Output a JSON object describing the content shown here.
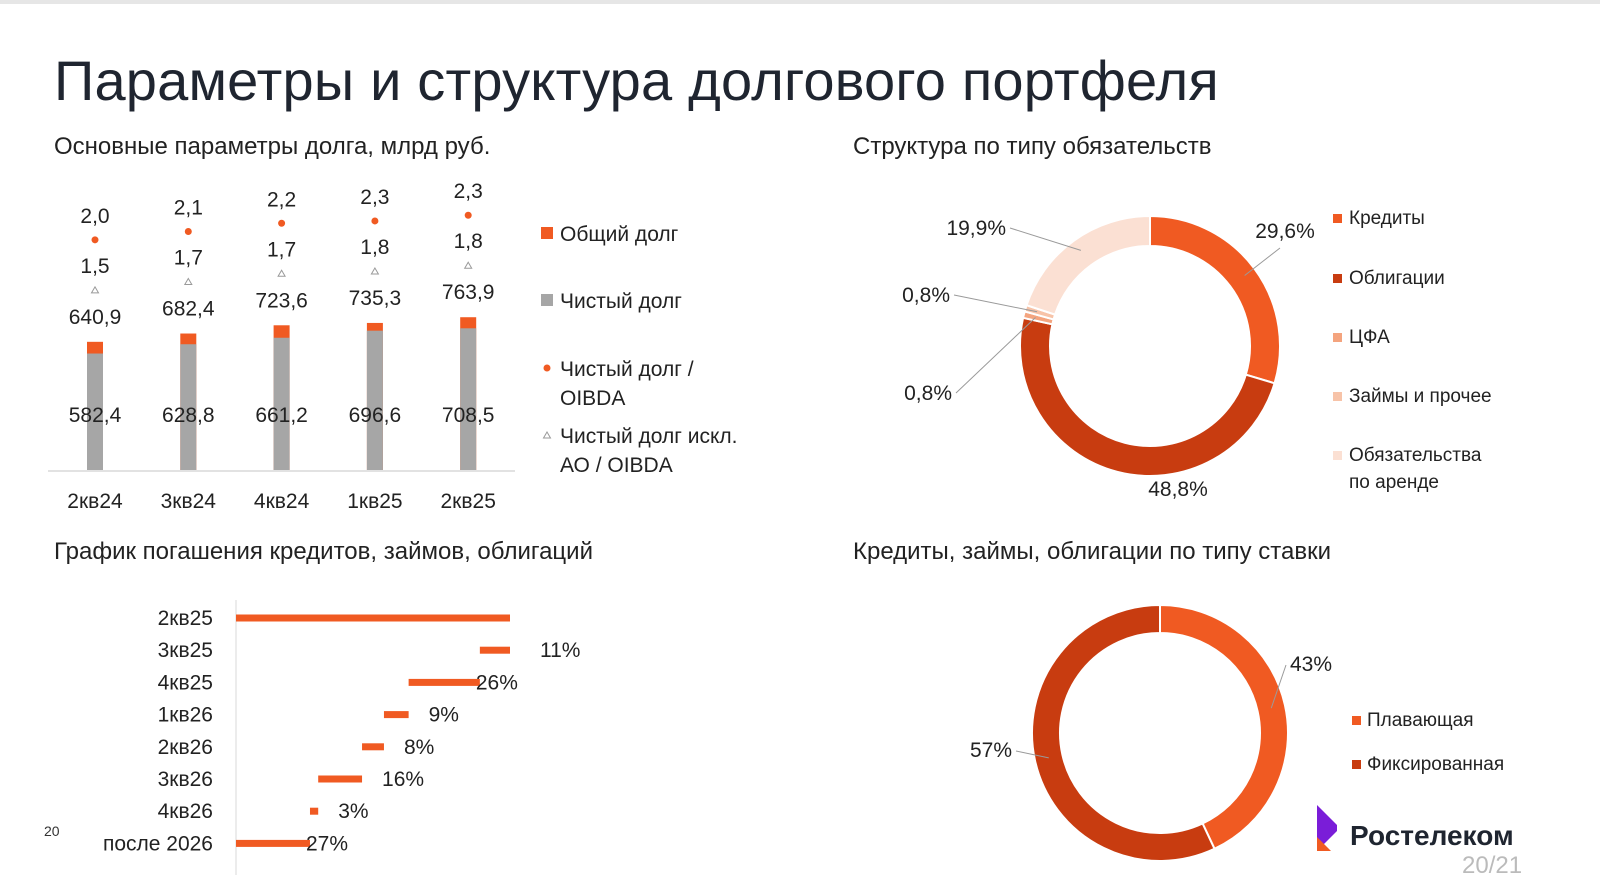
{
  "title": "Параметры и структура долгового портфеля",
  "colors": {
    "accent": "#f05a22",
    "dark_orange": "#c83c10",
    "net_debt": "#a6a6a6",
    "cfa": "#f4a47e",
    "loans_other": "#f7c3a8",
    "lease": "#fbe0d3",
    "purple": "#7a1dd8"
  },
  "brand": {
    "name": "Ростелеком"
  },
  "page_number": "20",
  "slide_counter": "20/21",
  "chart_data": [
    {
      "type": "bar",
      "title": "Основные параметры долга, млрд руб.",
      "categories": [
        "2кв24",
        "3кв24",
        "4кв24",
        "1кв25",
        "2кв25"
      ],
      "series": [
        {
          "name": "Общий долг",
          "values": [
            "640,9",
            "682,4",
            "723,6",
            "735,3",
            "763,9"
          ],
          "raw": [
            640.9,
            682.4,
            723.6,
            735.3,
            763.9
          ]
        },
        {
          "name": "Чистый долг",
          "values": [
            "582,4",
            "628,8",
            "661,2",
            "696,6",
            "708,5"
          ],
          "raw": [
            582.4,
            628.8,
            661.2,
            696.6,
            708.5
          ]
        },
        {
          "name": "Чистый долг / OIBDA",
          "values": [
            "2,0",
            "2,1",
            "2,2",
            "2,3",
            "2,3"
          ],
          "raw": [
            2.0,
            2.1,
            2.2,
            2.3,
            2.3
          ]
        },
        {
          "name": "Чистый долг искл. АО / OIBDA",
          "values": [
            "1,5",
            "1,7",
            "1,7",
            "1,8",
            "1,8"
          ],
          "raw": [
            1.5,
            1.7,
            1.7,
            1.8,
            1.8
          ]
        }
      ],
      "legend": [
        {
          "lines": [
            "Общий долг"
          ],
          "marker": "square-accent"
        },
        {
          "lines": [
            "Чистый долг"
          ],
          "marker": "square-grey"
        },
        {
          "lines": [
            "Чистый долг /",
            "OIBDA"
          ],
          "marker": "dot"
        },
        {
          "lines": [
            "Чистый долг искл.",
            "АО / OIBDA"
          ],
          "marker": "triangle"
        }
      ],
      "legend_position": "right"
    },
    {
      "type": "pie",
      "title": "Структура по типу обязательств",
      "slices": [
        {
          "name": "Кредиты",
          "value": 29.6,
          "label": "29,6%",
          "color": "#f05a22"
        },
        {
          "name": "Облигации",
          "value": 48.8,
          "label": "48,8%",
          "color": "#c83c10"
        },
        {
          "name": "ЦФА",
          "value": 0.8,
          "label": "0,8%",
          "color": "#f4a47e"
        },
        {
          "name": "Займы и прочее",
          "value": 0.8,
          "label": "0,8%",
          "color": "#f7c3a8"
        },
        {
          "name": "Обязательства по аренде",
          "value": 19.9,
          "label": "19,9%",
          "color": "#fbe0d3"
        }
      ],
      "legend": [
        {
          "lines": [
            "Кредиты"
          ],
          "color": "#f05a22"
        },
        {
          "lines": [
            "Облигации"
          ],
          "color": "#c83c10"
        },
        {
          "lines": [
            "ЦФА"
          ],
          "color": "#f4a47e"
        },
        {
          "lines": [
            "Займы и прочее"
          ],
          "color": "#f7c3a8"
        },
        {
          "lines": [
            "Обязательства",
            "по аренде"
          ],
          "color": "#fbe0d3"
        }
      ],
      "legend_position": "right"
    },
    {
      "type": "bar",
      "orientation": "waterfall-horizontal",
      "title": "График погашения кредитов, займов, облигаций",
      "categories": [
        "2кв25",
        "3кв25",
        "4кв25",
        "1кв26",
        "2кв26",
        "3кв26",
        "4кв26",
        "после 2026"
      ],
      "values": [
        100,
        11,
        26,
        9,
        8,
        16,
        3,
        27
      ],
      "labels": [
        "",
        "11%",
        "26%",
        "9%",
        "8%",
        "16%",
        "3%",
        "27%"
      ]
    },
    {
      "type": "pie",
      "title": "Кредиты, займы, облигации по типу ставки",
      "slices": [
        {
          "name": "Плавающая",
          "value": 43,
          "label": "43%",
          "color": "#f05a22"
        },
        {
          "name": "Фиксированная",
          "value": 57,
          "label": "57%",
          "color": "#c83c10"
        }
      ],
      "legend": [
        {
          "lines": [
            "Плавающая"
          ],
          "color": "#f05a22"
        },
        {
          "lines": [
            "Фиксированная"
          ],
          "color": "#c83c10"
        }
      ],
      "legend_position": "right"
    }
  ]
}
